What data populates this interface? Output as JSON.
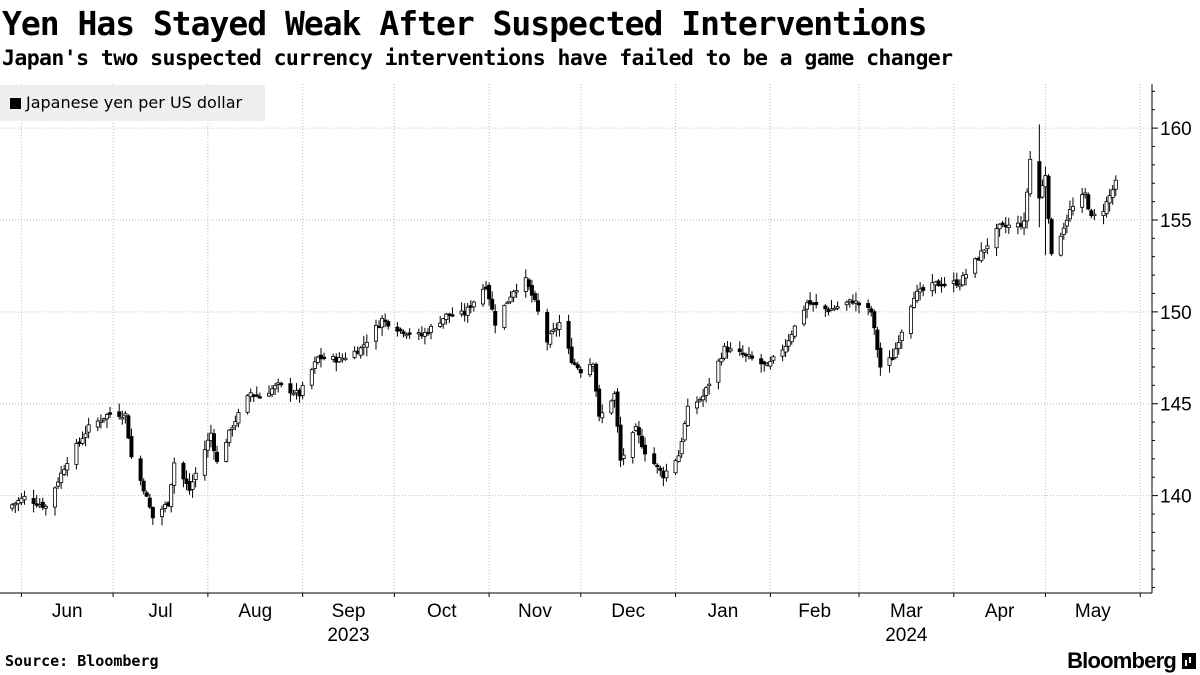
{
  "title": "Yen Has Stayed Weak After Suspected Interventions",
  "subtitle": "Japan's two suspected currency interventions have failed to be a game changer",
  "source": "Source: Bloomberg",
  "brand": "Bloomberg",
  "chart_data": {
    "type": "candlestick",
    "title": "Yen Has Stayed Weak After Suspected Interventions",
    "legend": [
      "Japanese yen per US dollar"
    ],
    "legend_position": "top-left",
    "y_axis_position": "right",
    "ylim": [
      134.7,
      162.4
    ],
    "y_ticks": [
      140,
      145,
      150,
      155,
      160
    ],
    "x_ticks": [
      {
        "label": "Jun",
        "year": ""
      },
      {
        "label": "Jul",
        "year": ""
      },
      {
        "label": "Aug",
        "year": ""
      },
      {
        "label": "Sep",
        "year": "2023"
      },
      {
        "label": "Oct",
        "year": ""
      },
      {
        "label": "Nov",
        "year": ""
      },
      {
        "label": "Dec",
        "year": ""
      },
      {
        "label": "Jan",
        "year": ""
      },
      {
        "label": "Feb",
        "year": ""
      },
      {
        "label": "Mar",
        "year": "2024"
      },
      {
        "label": "Apr",
        "year": ""
      },
      {
        "label": "May",
        "year": ""
      }
    ],
    "grid": true,
    "close_anchors": [
      [
        "2023-05-29",
        139.5
      ],
      [
        "2023-06-02",
        139.9
      ],
      [
        "2023-06-09",
        139.4
      ],
      [
        "2023-06-16",
        141.9
      ],
      [
        "2023-06-23",
        143.7
      ],
      [
        "2023-06-30",
        144.5
      ],
      [
        "2023-07-05",
        144.4
      ],
      [
        "2023-07-07",
        142.1
      ],
      [
        "2023-07-11",
        140.4
      ],
      [
        "2023-07-14",
        138.8
      ],
      [
        "2023-07-19",
        139.6
      ],
      [
        "2023-07-21",
        141.8
      ],
      [
        "2023-07-26",
        140.3
      ],
      [
        "2023-07-28",
        141.2
      ],
      [
        "2023-08-02",
        143.4
      ],
      [
        "2023-08-04",
        141.8
      ],
      [
        "2023-08-09",
        143.8
      ],
      [
        "2023-08-15",
        145.6
      ],
      [
        "2023-08-18",
        145.4
      ],
      [
        "2023-08-24",
        146.0
      ],
      [
        "2023-08-31",
        145.5
      ],
      [
        "2023-09-06",
        147.5
      ],
      [
        "2023-09-13",
        147.4
      ],
      [
        "2023-09-20",
        148.0
      ],
      [
        "2023-09-27",
        149.6
      ],
      [
        "2023-10-03",
        149.0
      ],
      [
        "2023-10-10",
        148.7
      ],
      [
        "2023-10-18",
        149.8
      ],
      [
        "2023-10-24",
        149.9
      ],
      [
        "2023-10-31",
        151.5
      ],
      [
        "2023-11-03",
        149.4
      ],
      [
        "2023-11-09",
        151.2
      ],
      [
        "2023-11-13",
        151.7
      ],
      [
        "2023-11-16",
        150.5
      ],
      [
        "2023-11-20",
        148.4
      ],
      [
        "2023-11-24",
        149.4
      ],
      [
        "2023-11-28",
        147.4
      ],
      [
        "2023-12-01",
        146.8
      ],
      [
        "2023-12-05",
        147.3
      ],
      [
        "2023-12-07",
        144.2
      ],
      [
        "2023-12-12",
        145.5
      ],
      [
        "2023-12-14",
        141.9
      ],
      [
        "2023-12-19",
        143.6
      ],
      [
        "2023-12-22",
        142.4
      ],
      [
        "2023-12-28",
        141.1
      ],
      [
        "2024-01-02",
        142.2
      ],
      [
        "2024-01-05",
        144.7
      ],
      [
        "2024-01-10",
        145.4
      ],
      [
        "2024-01-17",
        148.0
      ],
      [
        "2024-01-24",
        147.6
      ],
      [
        "2024-01-31",
        147.0
      ],
      [
        "2024-02-06",
        148.2
      ],
      [
        "2024-02-13",
        150.5
      ],
      [
        "2024-02-20",
        150.1
      ],
      [
        "2024-02-28",
        150.6
      ],
      [
        "2024-03-05",
        150.0
      ],
      [
        "2024-03-08",
        147.0
      ],
      [
        "2024-03-12",
        147.5
      ],
      [
        "2024-03-15",
        149.0
      ],
      [
        "2024-03-19",
        150.9
      ],
      [
        "2024-03-26",
        151.5
      ],
      [
        "2024-04-03",
        151.6
      ],
      [
        "2024-04-10",
        153.2
      ],
      [
        "2024-04-16",
        154.6
      ],
      [
        "2024-04-24",
        154.8
      ],
      [
        "2024-04-26",
        158.3
      ],
      [
        "2024-04-29",
        156.2
      ],
      [
        "2024-05-01",
        157.5
      ],
      [
        "2024-05-03",
        153.0
      ],
      [
        "2024-05-09",
        155.5
      ],
      [
        "2024-05-14",
        156.4
      ],
      [
        "2024-05-16",
        155.1
      ],
      [
        "2024-05-20",
        155.6
      ],
      [
        "2024-05-24",
        157.0
      ]
    ],
    "interventions": [
      {
        "date": "2024-04-29",
        "high": 160.2,
        "low": 154.6
      },
      {
        "date": "2024-05-01",
        "high": 157.9,
        "low": 153.1
      }
    ]
  }
}
